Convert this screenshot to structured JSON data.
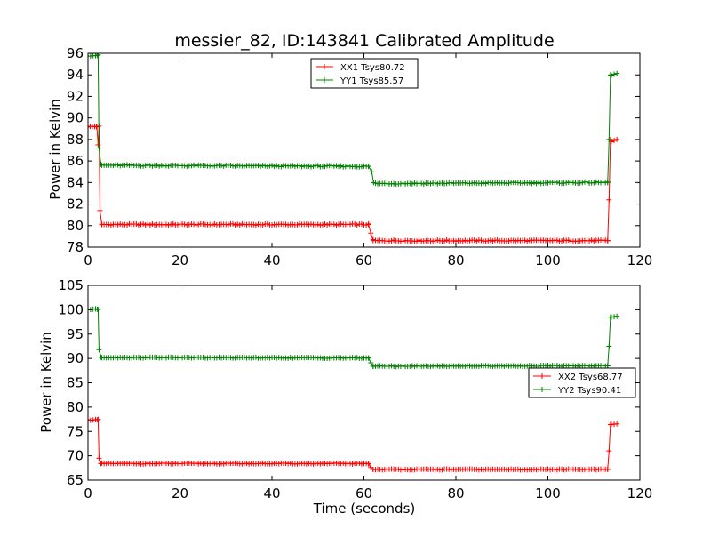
{
  "chart_data": [
    {
      "type": "line",
      "title": "messier_82, ID:143841 Calibrated Amplitude",
      "xlabel": "",
      "ylabel": "Power in Kelvin",
      "xlim": [
        0,
        120
      ],
      "ylim": [
        78,
        96
      ],
      "xticks": [
        "0",
        "20",
        "40",
        "60",
        "80",
        "100",
        "120"
      ],
      "yticks": [
        "78",
        "80",
        "82",
        "84",
        "86",
        "88",
        "90",
        "92",
        "94",
        "96"
      ],
      "legend_position": "top-center",
      "series": [
        {
          "name": "XX1 Tsys80.72",
          "color": "#ff0000",
          "segments": [
            {
              "x": [
                0,
                2.4
              ],
              "start": 89.2,
              "end": 89.2
            },
            {
              "x": [
                3,
                61
              ],
              "start": 80.1,
              "end": 80.1
            },
            {
              "x": [
                62,
                113
              ],
              "start": 78.6,
              "end": 78.6
            },
            {
              "x": [
                113.8,
                115
              ],
              "start": 87.8,
              "end": 88.0
            }
          ],
          "transition_points": [
            [
              1.8,
              89.2
            ],
            [
              2.2,
              87.5
            ],
            [
              2.6,
              81.4
            ],
            [
              3,
              80.1
            ],
            [
              61,
              80.1
            ],
            [
              61.5,
              79.3
            ],
            [
              62,
              78.7
            ],
            [
              113,
              78.6
            ],
            [
              113.3,
              82.4
            ],
            [
              113.6,
              88.0
            ]
          ]
        },
        {
          "name": "YY1 Tsys85.57",
          "color": "#008000",
          "segments": [
            {
              "x": [
                0,
                2.2
              ],
              "start": 95.8,
              "end": 95.8
            },
            {
              "x": [
                3,
                61
              ],
              "start": 85.6,
              "end": 85.5
            },
            {
              "x": [
                62.5,
                113
              ],
              "start": 83.9,
              "end": 84.0
            },
            {
              "x": [
                113.8,
                115
              ],
              "start": 94.0,
              "end": 94.1
            }
          ],
          "transition_points": [
            [
              2.0,
              95.8
            ],
            [
              2.4,
              87.2
            ],
            [
              2.8,
              85.7
            ],
            [
              61,
              85.5
            ],
            [
              61.7,
              85.0
            ],
            [
              62.1,
              84.0
            ],
            [
              113,
              84.0
            ],
            [
              113.3,
              88.0
            ],
            [
              113.6,
              94.0
            ]
          ]
        }
      ]
    },
    {
      "type": "line",
      "title": "",
      "xlabel": "Time (seconds)",
      "ylabel": "Power in Kelvin",
      "xlim": [
        0,
        120
      ],
      "ylim": [
        65,
        105
      ],
      "xticks": [
        "0",
        "20",
        "40",
        "60",
        "80",
        "100",
        "120"
      ],
      "yticks": [
        "65",
        "70",
        "75",
        "80",
        "85",
        "90",
        "95",
        "100",
        "105"
      ],
      "legend_position": "right",
      "series": [
        {
          "name": "XX2 Tsys68.77",
          "color": "#ff0000",
          "segments": [
            {
              "x": [
                0,
                2.2
              ],
              "start": 77.4,
              "end": 77.4
            },
            {
              "x": [
                3,
                61
              ],
              "start": 68.4,
              "end": 68.4
            },
            {
              "x": [
                62,
                113
              ],
              "start": 67.2,
              "end": 67.2
            },
            {
              "x": [
                113.8,
                115
              ],
              "start": 76.4,
              "end": 76.5
            }
          ],
          "transition_points": [
            [
              2.0,
              77.4
            ],
            [
              2.4,
              69.5
            ],
            [
              2.8,
              68.4
            ],
            [
              61,
              68.4
            ],
            [
              61.5,
              67.6
            ],
            [
              62,
              67.2
            ],
            [
              113,
              67.2
            ],
            [
              113.3,
              71.0
            ],
            [
              113.6,
              76.4
            ]
          ]
        },
        {
          "name": "YY2 Tsys90.41",
          "color": "#008000",
          "segments": [
            {
              "x": [
                0,
                2.2
              ],
              "start": 100.1,
              "end": 100.1
            },
            {
              "x": [
                3,
                61
              ],
              "start": 90.2,
              "end": 90.1
            },
            {
              "x": [
                62,
                113
              ],
              "start": 88.4,
              "end": 88.5
            },
            {
              "x": [
                113.8,
                115
              ],
              "start": 98.5,
              "end": 98.6
            }
          ],
          "transition_points": [
            [
              2.0,
              100.1
            ],
            [
              2.4,
              91.8
            ],
            [
              2.8,
              90.3
            ],
            [
              61,
              90.1
            ],
            [
              61.5,
              89.1
            ],
            [
              62,
              88.4
            ],
            [
              113,
              88.5
            ],
            [
              113.3,
              92.5
            ],
            [
              113.6,
              98.5
            ]
          ]
        }
      ]
    }
  ]
}
